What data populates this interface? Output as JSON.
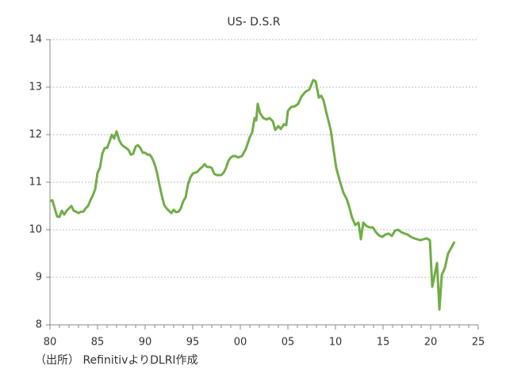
{
  "chart_data": {
    "type": "line",
    "title": "US- D.S.R",
    "note": "（出所） RefinitivよりDLRI作成",
    "x": [
      1980,
      1980.25,
      1980.5,
      1980.75,
      1981,
      1981.25,
      1981.5,
      1981.75,
      1982,
      1982.25,
      1982.5,
      1982.75,
      1983,
      1983.25,
      1983.5,
      1983.75,
      1984,
      1984.25,
      1984.5,
      1984.75,
      1985,
      1985.25,
      1985.5,
      1985.75,
      1986,
      1986.25,
      1986.5,
      1986.75,
      1987,
      1987.25,
      1987.5,
      1987.75,
      1988,
      1988.25,
      1988.5,
      1988.75,
      1989,
      1989.25,
      1989.5,
      1989.75,
      1990,
      1990.25,
      1990.5,
      1990.75,
      1991,
      1991.25,
      1991.5,
      1991.75,
      1992,
      1992.25,
      1992.5,
      1992.75,
      1993,
      1993.25,
      1993.5,
      1993.75,
      1994,
      1994.25,
      1994.5,
      1994.75,
      1995,
      1995.25,
      1995.5,
      1995.75,
      1996,
      1996.25,
      1996.5,
      1996.75,
      1997,
      1997.25,
      1997.5,
      1997.75,
      1998,
      1998.25,
      1998.5,
      1998.75,
      1999,
      1999.25,
      1999.5,
      1999.75,
      2000.17,
      2000.58,
      2001.0,
      2001.25,
      2001.5,
      2001.67,
      2001.83,
      2002.08,
      2002.42,
      2002.75,
      2003.08,
      2003.42,
      2003.67,
      2004.0,
      2004.25,
      2004.58,
      2004.83,
      2005.0,
      2005.33,
      2005.75,
      2006.08,
      2006.42,
      2006.83,
      2007.25,
      2007.67,
      2007.92,
      2008.25,
      2008.5,
      2008.75,
      2009.0,
      2009.25,
      2009.5,
      2009.75,
      2010.08,
      2010.42,
      2010.83,
      2011.17,
      2011.42,
      2011.75,
      2012.08,
      2012.42,
      2012.67,
      2012.92,
      2013.25,
      2013.58,
      2013.92,
      2014.25,
      2014.58,
      2014.92,
      2015.25,
      2015.58,
      2015.92,
      2016.25,
      2016.58,
      2016.92,
      2017.25,
      2017.58,
      2017.92,
      2018.25,
      2018.58,
      2018.92,
      2019.25,
      2019.58,
      2019.92,
      2020.17,
      2020.42,
      2020.67,
      2020.92,
      2021.17,
      2021.5,
      2021.83,
      2022.17,
      2022.5
    ],
    "series": [
      {
        "name": "US- D.S.R",
        "color": "#70ad47",
        "values": [
          10.6,
          10.62,
          10.45,
          10.28,
          10.27,
          10.4,
          10.32,
          10.4,
          10.45,
          10.5,
          10.4,
          10.38,
          10.35,
          10.38,
          10.38,
          10.45,
          10.5,
          10.62,
          10.72,
          10.85,
          11.2,
          11.3,
          11.6,
          11.72,
          11.72,
          11.85,
          12.0,
          11.92,
          12.07,
          11.9,
          11.8,
          11.75,
          11.72,
          11.68,
          11.58,
          11.6,
          11.75,
          11.78,
          11.72,
          11.62,
          11.62,
          11.58,
          11.58,
          11.5,
          11.38,
          11.2,
          10.95,
          10.72,
          10.52,
          10.45,
          10.4,
          10.35,
          10.42,
          10.37,
          10.38,
          10.45,
          10.6,
          10.68,
          10.95,
          11.1,
          11.18,
          11.2,
          11.22,
          11.28,
          11.32,
          11.38,
          11.32,
          11.32,
          11.3,
          11.18,
          11.15,
          11.15,
          11.15,
          11.2,
          11.3,
          11.45,
          11.52,
          11.55,
          11.55,
          11.52,
          11.55,
          11.7,
          11.95,
          12.05,
          12.35,
          12.3,
          12.65,
          12.45,
          12.35,
          12.32,
          12.35,
          12.28,
          12.1,
          12.18,
          12.12,
          12.22,
          12.2,
          12.5,
          12.58,
          12.6,
          12.65,
          12.8,
          12.9,
          12.95,
          13.15,
          13.12,
          12.78,
          12.82,
          12.72,
          12.5,
          12.3,
          12.1,
          11.75,
          11.3,
          11.05,
          10.78,
          10.65,
          10.5,
          10.25,
          10.1,
          10.15,
          9.8,
          10.15,
          10.08,
          10.05,
          10.05,
          9.95,
          9.88,
          9.85,
          9.9,
          9.92,
          9.87,
          9.98,
          10.0,
          9.95,
          9.92,
          9.9,
          9.85,
          9.82,
          9.8,
          9.78,
          9.8,
          9.82,
          9.78,
          8.8,
          9.05,
          9.3,
          8.32,
          9.05,
          9.2,
          9.5,
          9.62,
          9.75
        ]
      }
    ],
    "xlim": [
      1980,
      2025
    ],
    "xticks": [
      {
        "value": 1980,
        "label": "80"
      },
      {
        "value": 1985,
        "label": "85"
      },
      {
        "value": 1990,
        "label": "90"
      },
      {
        "value": 1995,
        "label": "95"
      },
      {
        "value": 2000,
        "label": "00"
      },
      {
        "value": 2005,
        "label": "05"
      },
      {
        "value": 2010,
        "label": "10"
      },
      {
        "value": 2015,
        "label": "15"
      },
      {
        "value": 2020,
        "label": "20"
      },
      {
        "value": 2025,
        "label": "25"
      }
    ],
    "ylim": [
      8,
      14
    ],
    "yticks": [
      8,
      9,
      10,
      11,
      12,
      13,
      14
    ],
    "grid": true
  }
}
